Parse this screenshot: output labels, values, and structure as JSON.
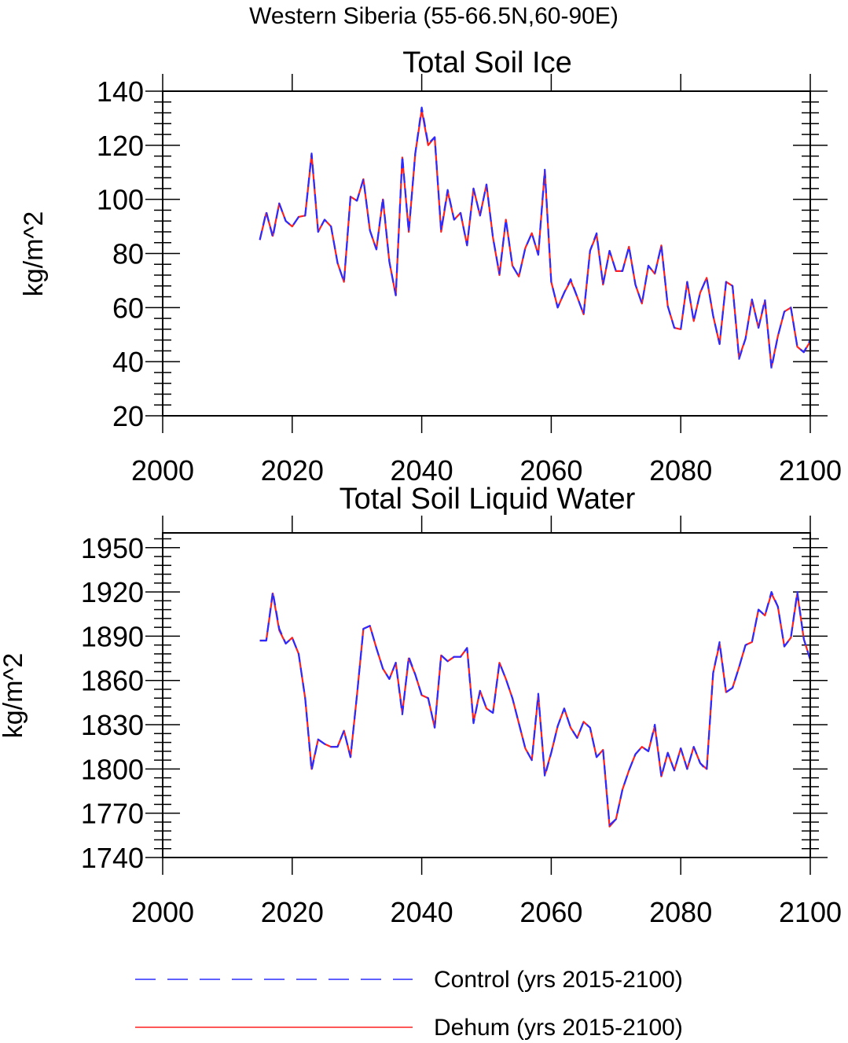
{
  "suptitle": "Western Siberia (55-66.5N,60-90E)",
  "legend": {
    "position": "bottom",
    "items": [
      {
        "label": "Control (yrs 2015-2100)",
        "color": "#2b2bff",
        "style": "dashed"
      },
      {
        "label": "Dehum (yrs 2015-2100)",
        "color": "#ff2020",
        "style": "solid"
      }
    ]
  },
  "chart_data": [
    {
      "type": "line",
      "title": "Total Soil Ice",
      "xlabel": "",
      "ylabel": "kg/m^2",
      "xlim": [
        2000,
        2100
      ],
      "ylim": [
        20,
        140
      ],
      "xticks": [
        2000,
        2020,
        2040,
        2060,
        2080,
        2100
      ],
      "yticks": [
        20,
        40,
        60,
        80,
        100,
        120,
        140
      ],
      "grid": false,
      "x": [
        2015,
        2016,
        2017,
        2018,
        2019,
        2020,
        2021,
        2022,
        2023,
        2024,
        2025,
        2026,
        2027,
        2028,
        2029,
        2030,
        2031,
        2032,
        2033,
        2034,
        2035,
        2036,
        2037,
        2038,
        2039,
        2040,
        2041,
        2042,
        2043,
        2044,
        2045,
        2046,
        2047,
        2048,
        2049,
        2050,
        2051,
        2052,
        2053,
        2054,
        2055,
        2056,
        2057,
        2058,
        2059,
        2060,
        2061,
        2062,
        2063,
        2064,
        2065,
        2066,
        2067,
        2068,
        2069,
        2070,
        2071,
        2072,
        2073,
        2074,
        2075,
        2076,
        2077,
        2078,
        2079,
        2080,
        2081,
        2082,
        2083,
        2084,
        2085,
        2086,
        2087,
        2088,
        2089,
        2090,
        2091,
        2092,
        2093,
        2094,
        2095,
        2096,
        2097,
        2098,
        2099,
        2100
      ],
      "series": [
        {
          "name": "Control (yrs 2015-2100)",
          "color": "#2b2bff",
          "style": "dashed",
          "values": [
            85,
            95.5,
            86,
            98.5,
            92,
            90,
            93.5,
            94,
            117,
            88,
            92.5,
            90,
            76.5,
            69.5,
            101,
            99.5,
            107.5,
            88.5,
            81.5,
            100.5,
            77,
            64.5,
            116,
            88,
            117,
            134,
            120.5,
            123,
            88.5,
            103.5,
            92.5,
            95,
            83,
            104,
            94,
            105.5,
            86,
            72.5,
            92.5,
            75.5,
            71.5,
            82,
            87.5,
            79.5,
            111,
            69.5,
            60,
            65.5,
            70.5,
            64,
            57.5,
            81,
            87.5,
            68.5,
            81,
            73.5,
            73.5,
            82.5,
            68.5,
            61.5,
            75.5,
            72.5,
            83,
            60.5,
            52.5,
            52,
            69.5,
            55,
            65.5,
            71,
            57,
            46.5,
            69.5,
            68,
            41,
            48.5,
            63,
            52.5,
            63,
            37.5,
            49.5,
            58.5,
            60,
            45.5,
            43.5,
            48
          ]
        },
        {
          "name": "Dehum (yrs 2015-2100)",
          "color": "#ff2020",
          "style": "solid",
          "values": [
            85,
            95,
            86.5,
            98.5,
            92,
            90,
            93.5,
            94,
            116.5,
            88,
            92.5,
            90,
            76.5,
            69.5,
            101,
            99.5,
            107.5,
            88.5,
            81.5,
            100,
            77,
            64.5,
            115.5,
            88,
            117,
            133,
            120,
            123,
            88,
            103,
            92.5,
            95,
            83,
            104,
            94,
            105.5,
            86,
            72,
            92.5,
            75.5,
            71.5,
            82,
            87.5,
            79.5,
            110.5,
            69.5,
            60,
            65.5,
            70,
            64,
            57.5,
            81,
            87,
            68.5,
            81,
            73.5,
            73.5,
            82.5,
            68.5,
            61.5,
            75.5,
            72.5,
            83,
            60.5,
            52.5,
            52,
            69.5,
            55,
            65.5,
            71,
            57,
            46.5,
            69.5,
            68,
            41.5,
            48.5,
            63,
            52.5,
            62.5,
            38,
            49.5,
            58.5,
            60,
            45.5,
            43.5,
            47.5
          ]
        }
      ]
    },
    {
      "type": "line",
      "title": "Total Soil Liquid Water",
      "xlabel": "",
      "ylabel": "kg/m^2",
      "xlim": [
        2000,
        2100
      ],
      "ylim": [
        1740,
        1960
      ],
      "xticks": [
        2000,
        2020,
        2040,
        2060,
        2080,
        2100
      ],
      "yticks": [
        1740,
        1770,
        1800,
        1830,
        1860,
        1890,
        1920,
        1950
      ],
      "grid": false,
      "x": [
        2015,
        2016,
        2017,
        2018,
        2019,
        2020,
        2021,
        2022,
        2023,
        2024,
        2025,
        2026,
        2027,
        2028,
        2029,
        2030,
        2031,
        2032,
        2033,
        2034,
        2035,
        2036,
        2037,
        2038,
        2039,
        2040,
        2041,
        2042,
        2043,
        2044,
        2045,
        2046,
        2047,
        2048,
        2049,
        2050,
        2051,
        2052,
        2053,
        2054,
        2055,
        2056,
        2057,
        2058,
        2059,
        2060,
        2061,
        2062,
        2063,
        2064,
        2065,
        2066,
        2067,
        2068,
        2069,
        2070,
        2071,
        2072,
        2073,
        2074,
        2075,
        2076,
        2077,
        2078,
        2079,
        2080,
        2081,
        2082,
        2083,
        2084,
        2085,
        2086,
        2087,
        2088,
        2089,
        2090,
        2091,
        2092,
        2093,
        2094,
        2095,
        2096,
        2097,
        2098,
        2099,
        2100
      ],
      "series": [
        {
          "name": "Control (yrs 2015-2100)",
          "color": "#2b2bff",
          "style": "dashed",
          "values": [
            1887,
            1887,
            1920,
            1895,
            1885,
            1889,
            1878,
            1848,
            1799,
            1820,
            1817,
            1815,
            1815,
            1826,
            1808,
            1850,
            1895,
            1897,
            1882,
            1868,
            1861,
            1872,
            1837,
            1876,
            1864,
            1850,
            1848,
            1828,
            1877,
            1873,
            1876,
            1876,
            1882,
            1831,
            1853,
            1841,
            1838,
            1872,
            1861,
            1848,
            1831,
            1814,
            1806,
            1851,
            1795,
            1811,
            1829,
            1841,
            1828,
            1821,
            1832,
            1828,
            1808,
            1813,
            1762,
            1766,
            1786,
            1799,
            1810,
            1815,
            1812,
            1830,
            1795,
            1811,
            1799,
            1814,
            1800,
            1815,
            1804,
            1799,
            1865,
            1886,
            1852,
            1855,
            1869,
            1884,
            1886,
            1908,
            1904,
            1920,
            1910,
            1883,
            1889,
            1920,
            1888,
            1874
          ]
        },
        {
          "name": "Dehum (yrs 2015-2100)",
          "color": "#ff2020",
          "style": "solid",
          "values": [
            1887,
            1887,
            1919,
            1894,
            1885,
            1889,
            1878,
            1848,
            1800,
            1820,
            1817,
            1815,
            1815,
            1826,
            1808,
            1850,
            1895,
            1897,
            1882,
            1868,
            1861,
            1872,
            1838,
            1875,
            1864,
            1850,
            1848,
            1828,
            1877,
            1873,
            1876,
            1876,
            1882,
            1832,
            1853,
            1841,
            1838,
            1872,
            1861,
            1848,
            1831,
            1814,
            1806,
            1850,
            1796,
            1811,
            1829,
            1841,
            1828,
            1821,
            1832,
            1828,
            1808,
            1813,
            1761,
            1766,
            1786,
            1799,
            1810,
            1815,
            1812,
            1829,
            1795,
            1811,
            1799,
            1814,
            1800,
            1815,
            1804,
            1800,
            1865,
            1885,
            1852,
            1855,
            1869,
            1884,
            1886,
            1908,
            1904,
            1919,
            1910,
            1883,
            1889,
            1919,
            1888,
            1874
          ]
        }
      ]
    }
  ]
}
